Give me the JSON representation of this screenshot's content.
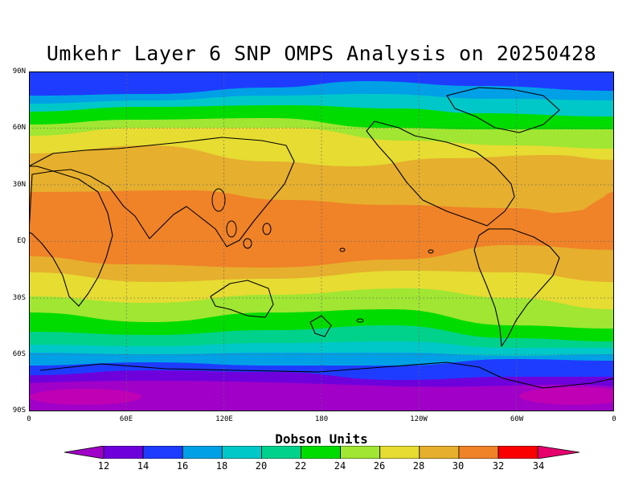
{
  "title": "Umkehr Layer 6 SNP OMPS Analysis on 20250428",
  "map": {
    "projection": "cylindrical-equidistant",
    "lon_range": [
      0,
      360
    ],
    "lat_range": [
      -90,
      90
    ],
    "lat_labels": [
      "90N",
      "60N",
      "30N",
      "EQ",
      "30S",
      "60S",
      "90S"
    ],
    "lon_labels": [
      "0",
      "60E",
      "120E",
      "180",
      "120W",
      "60W",
      "0"
    ],
    "grid": "dotted"
  },
  "colorbar": {
    "title": "Dobson Units",
    "labels": [
      "12",
      "14",
      "16",
      "18",
      "20",
      "22",
      "24",
      "26",
      "28",
      "30",
      "32",
      "34"
    ],
    "colors": [
      "#a000c8",
      "#6e00dc",
      "#1e3cff",
      "#00a0e6",
      "#00c8c8",
      "#00d28c",
      "#00dc00",
      "#a0e632",
      "#e6dc32",
      "#e6af2d",
      "#f08228",
      "#fa0000",
      "#e6006e"
    ]
  }
}
